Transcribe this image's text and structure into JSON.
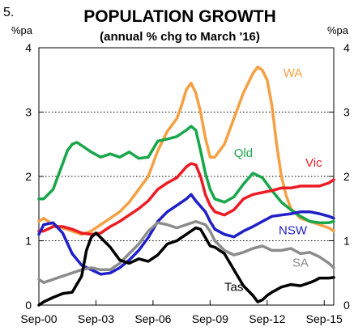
{
  "figure_number": "5.",
  "chart_data": {
    "type": "line",
    "title": "POPULATION GROWTH",
    "subtitle": "(annual % chg to March '16)",
    "ylabel_left": "%pa",
    "ylabel_right": "%pa",
    "ylim": [
      0,
      4
    ],
    "y_ticks": [
      "0",
      "1",
      "2",
      "3",
      "4"
    ],
    "x_ticks": [
      {
        "label": "Sep-00",
        "x": 2000.75
      },
      {
        "label": "Sep-03",
        "x": 2003.75
      },
      {
        "label": "Sep-06",
        "x": 2006.75
      },
      {
        "label": "Sep-09",
        "x": 2009.75
      },
      {
        "label": "Sep-12",
        "x": 2012.75
      },
      {
        "label": "Sep-15",
        "x": 2015.75
      }
    ],
    "xlim": [
      2000.75,
      2016.25
    ],
    "grid": "horizontal dotted at 1, 2, 3",
    "series": [
      {
        "name": "WA",
        "color": "#f5a044",
        "x": [
          2000.75,
          2001.0,
          2001.5,
          2002.0,
          2002.5,
          2003.0,
          2003.5,
          2004.0,
          2004.5,
          2005.0,
          2005.5,
          2006.0,
          2006.5,
          2007.0,
          2007.5,
          2008.0,
          2008.25,
          2008.5,
          2008.75,
          2009.0,
          2009.25,
          2009.5,
          2009.75,
          2010.0,
          2010.5,
          2011.0,
          2011.5,
          2012.0,
          2012.25,
          2012.5,
          2012.75,
          2013.0,
          2013.25,
          2013.5,
          2013.75,
          2014.0,
          2014.5,
          2015.0,
          2015.5,
          2016.0,
          2016.25
        ],
        "y": [
          1.3,
          1.35,
          1.25,
          1.2,
          1.15,
          1.1,
          1.15,
          1.25,
          1.35,
          1.45,
          1.6,
          1.8,
          2.0,
          2.4,
          2.7,
          2.9,
          3.1,
          3.35,
          3.45,
          3.3,
          3.0,
          2.6,
          2.3,
          2.3,
          2.5,
          2.9,
          3.3,
          3.6,
          3.7,
          3.65,
          3.5,
          3.1,
          2.5,
          2.0,
          1.7,
          1.5,
          1.35,
          1.3,
          1.25,
          1.2,
          1.15
        ]
      },
      {
        "name": "Qld",
        "color": "#1aa64a",
        "x": [
          2000.75,
          2001.0,
          2001.5,
          2002.0,
          2002.25,
          2002.5,
          2002.75,
          2003.0,
          2003.5,
          2004.0,
          2004.5,
          2005.0,
          2005.5,
          2006.0,
          2006.5,
          2007.0,
          2007.5,
          2008.0,
          2008.5,
          2008.75,
          2009.0,
          2009.25,
          2009.5,
          2009.75,
          2010.0,
          2010.5,
          2011.0,
          2011.5,
          2012.0,
          2012.5,
          2013.0,
          2013.5,
          2014.0,
          2014.5,
          2015.0,
          2015.5,
          2016.0,
          2016.25
        ],
        "y": [
          1.65,
          1.65,
          1.8,
          2.2,
          2.4,
          2.5,
          2.53,
          2.48,
          2.38,
          2.3,
          2.35,
          2.3,
          2.38,
          2.28,
          2.3,
          2.55,
          2.58,
          2.62,
          2.72,
          2.78,
          2.72,
          2.4,
          2.05,
          1.8,
          1.65,
          1.6,
          1.68,
          1.88,
          2.05,
          1.98,
          1.78,
          1.6,
          1.48,
          1.38,
          1.3,
          1.28,
          1.28,
          1.3
        ]
      },
      {
        "name": "Vic",
        "color": "#ed1c24",
        "x": [
          2000.75,
          2001.0,
          2001.5,
          2002.0,
          2002.5,
          2003.0,
          2003.5,
          2004.0,
          2004.5,
          2005.0,
          2005.5,
          2006.0,
          2006.5,
          2007.0,
          2007.5,
          2008.0,
          2008.5,
          2008.75,
          2009.0,
          2009.25,
          2009.5,
          2009.75,
          2010.0,
          2010.5,
          2011.0,
          2011.5,
          2012.0,
          2012.5,
          2013.0,
          2013.5,
          2014.0,
          2014.5,
          2015.0,
          2015.5,
          2016.0,
          2016.25
        ],
        "y": [
          1.15,
          1.15,
          1.22,
          1.22,
          1.18,
          1.12,
          1.1,
          1.12,
          1.22,
          1.3,
          1.4,
          1.5,
          1.62,
          1.8,
          1.9,
          1.98,
          2.15,
          2.2,
          2.18,
          2.0,
          1.72,
          1.55,
          1.45,
          1.4,
          1.48,
          1.65,
          1.72,
          1.75,
          1.78,
          1.82,
          1.82,
          1.85,
          1.85,
          1.85,
          1.9,
          1.95
        ]
      },
      {
        "name": "NSW",
        "color": "#2020c8",
        "x": [
          2000.75,
          2001.0,
          2001.5,
          2002.0,
          2002.5,
          2003.0,
          2003.5,
          2004.0,
          2004.5,
          2005.0,
          2005.5,
          2006.0,
          2006.5,
          2007.0,
          2007.5,
          2008.0,
          2008.5,
          2008.75,
          2009.0,
          2009.5,
          2009.75,
          2010.0,
          2010.5,
          2011.0,
          2011.5,
          2012.0,
          2012.5,
          2013.0,
          2013.5,
          2014.0,
          2014.5,
          2015.0,
          2015.5,
          2016.0,
          2016.25
        ],
        "y": [
          1.1,
          1.25,
          1.28,
          1.12,
          0.8,
          0.62,
          0.55,
          0.48,
          0.5,
          0.58,
          0.7,
          0.85,
          1.05,
          1.3,
          1.45,
          1.55,
          1.65,
          1.72,
          1.62,
          1.45,
          1.3,
          1.18,
          1.1,
          1.06,
          1.15,
          1.22,
          1.3,
          1.38,
          1.4,
          1.42,
          1.45,
          1.45,
          1.42,
          1.38,
          1.35
        ]
      },
      {
        "name": "SA",
        "color": "#8c8c8c",
        "x": [
          2000.75,
          2001.0,
          2001.5,
          2002.0,
          2002.5,
          2003.0,
          2003.5,
          2004.0,
          2004.5,
          2005.0,
          2005.5,
          2006.0,
          2006.5,
          2007.0,
          2007.5,
          2008.0,
          2008.5,
          2009.0,
          2009.5,
          2009.75,
          2010.0,
          2010.5,
          2011.0,
          2011.5,
          2012.0,
          2012.5,
          2013.0,
          2013.5,
          2014.0,
          2014.5,
          2015.0,
          2015.5,
          2016.0,
          2016.25
        ],
        "y": [
          0.4,
          0.35,
          0.4,
          0.45,
          0.5,
          0.55,
          0.58,
          0.55,
          0.55,
          0.65,
          0.8,
          0.95,
          1.15,
          1.28,
          1.25,
          1.2,
          1.25,
          1.3,
          1.25,
          1.15,
          1.0,
          0.85,
          0.78,
          0.82,
          0.88,
          0.92,
          0.85,
          0.85,
          0.88,
          0.8,
          0.82,
          0.75,
          0.65,
          0.58
        ]
      },
      {
        "name": "Tas",
        "color": "#000000",
        "x": [
          2000.75,
          2001.0,
          2001.5,
          2002.0,
          2002.5,
          2003.0,
          2003.25,
          2003.5,
          2003.75,
          2004.0,
          2004.5,
          2005.0,
          2005.5,
          2006.0,
          2006.5,
          2007.0,
          2007.5,
          2008.0,
          2008.5,
          2009.0,
          2009.25,
          2009.5,
          2009.75,
          2010.0,
          2010.5,
          2011.0,
          2011.5,
          2012.0,
          2012.25,
          2012.5,
          2012.75,
          2013.0,
          2013.5,
          2014.0,
          2014.5,
          2015.0,
          2015.25,
          2015.5,
          2016.0,
          2016.25
        ],
        "y": [
          0.0,
          0.05,
          0.12,
          0.18,
          0.2,
          0.45,
          0.85,
          1.05,
          1.12,
          1.05,
          0.9,
          0.7,
          0.65,
          0.72,
          0.68,
          0.78,
          0.95,
          1.0,
          1.1,
          1.2,
          1.18,
          1.05,
          0.92,
          0.9,
          0.8,
          0.55,
          0.3,
          0.15,
          0.05,
          0.08,
          0.15,
          0.2,
          0.28,
          0.32,
          0.3,
          0.35,
          0.38,
          0.42,
          0.42,
          0.43
        ]
      }
    ],
    "series_labels": [
      {
        "text": "WA",
        "color": "#f5a044",
        "x": 2014.1,
        "y": 3.55
      },
      {
        "text": "Qld",
        "color": "#1aa64a",
        "x": 2011.5,
        "y": 2.3
      },
      {
        "text": "Vic",
        "color": "#ed1c24",
        "x": 2015.2,
        "y": 2.15
      },
      {
        "text": "NSW",
        "color": "#2020c8",
        "x": 2014.1,
        "y": 1.1
      },
      {
        "text": "SA",
        "color": "#8c8c8c",
        "x": 2014.5,
        "y": 0.6
      },
      {
        "text": "Tas",
        "color": "#000000",
        "x": 2011.0,
        "y": 0.22
      }
    ]
  }
}
